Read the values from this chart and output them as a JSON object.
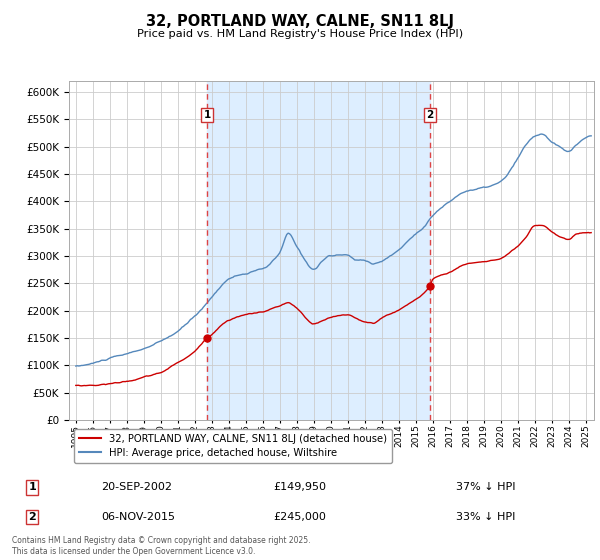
{
  "title": "32, PORTLAND WAY, CALNE, SN11 8LJ",
  "subtitle": "Price paid vs. HM Land Registry's House Price Index (HPI)",
  "legend_label_red": "32, PORTLAND WAY, CALNE, SN11 8LJ (detached house)",
  "legend_label_blue": "HPI: Average price, detached house, Wiltshire",
  "transaction1_date": "20-SEP-2002",
  "transaction1_price": 149950,
  "transaction1_text": "37% ↓ HPI",
  "transaction2_date": "06-NOV-2015",
  "transaction2_price": 245000,
  "transaction2_text": "33% ↓ HPI",
  "footer": "Contains HM Land Registry data © Crown copyright and database right 2025.\nThis data is licensed under the Open Government Licence v3.0.",
  "red_color": "#cc0000",
  "blue_color": "#5588bb",
  "shade_color": "#ddeeff",
  "vline_color": "#dd4444",
  "background_color": "#ffffff",
  "grid_color": "#cccccc",
  "ylim_max": 620000,
  "ytick_step": 50000,
  "transaction1_x": 2002.72,
  "transaction2_x": 2015.85
}
